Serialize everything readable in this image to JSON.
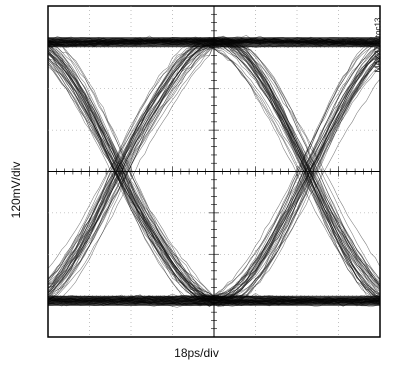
{
  "chart_data": {
    "type": "line",
    "title": "",
    "ylabel": "120mV/div",
    "xlabel": "18ps/div",
    "figure_code": "MAX3787toc13",
    "grid": true,
    "grid_divisions": {
      "x": 8,
      "y": 8
    },
    "x_unit": "ps",
    "y_unit": "mV",
    "xlim": [
      -72,
      72
    ],
    "ylim": [
      -480,
      480
    ],
    "levels": {
      "high": 375,
      "low": -375
    },
    "crossings": [
      -41,
      41
    ],
    "eye_opening_mV": 205
  }
}
